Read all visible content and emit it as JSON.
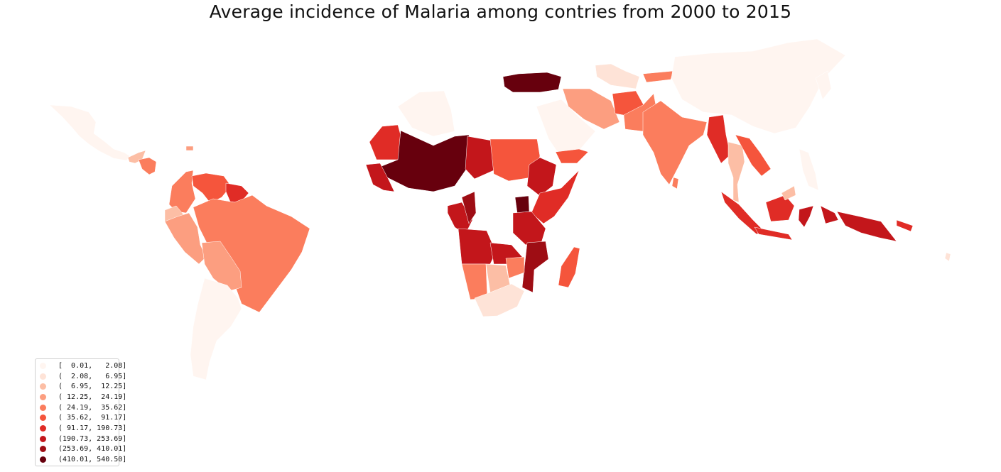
{
  "title": "Average incidence of Malaria among contries from 2000 to 2015",
  "legend": {
    "bins": [
      {
        "label": "[  0.01,   2.08]",
        "color": "#fff5f0"
      },
      {
        "label": "(  2.08,   6.95]",
        "color": "#fee3d7"
      },
      {
        "label": "(  6.95,  12.25]",
        "color": "#fcbea5"
      },
      {
        "label": "( 12.25,  24.19]",
        "color": "#fc9e80"
      },
      {
        "label": "( 24.19,  35.62]",
        "color": "#fb7d5d"
      },
      {
        "label": "( 35.62,  91.17]",
        "color": "#f5553c"
      },
      {
        "label": "( 91.17, 190.73]",
        "color": "#e02c26"
      },
      {
        "label": "(190.73, 253.69]",
        "color": "#c3161b"
      },
      {
        "label": "(253.69, 410.01]",
        "color": "#9e0d14"
      },
      {
        "label": "(410.01, 540.50]",
        "color": "#67000d"
      }
    ]
  }
}
